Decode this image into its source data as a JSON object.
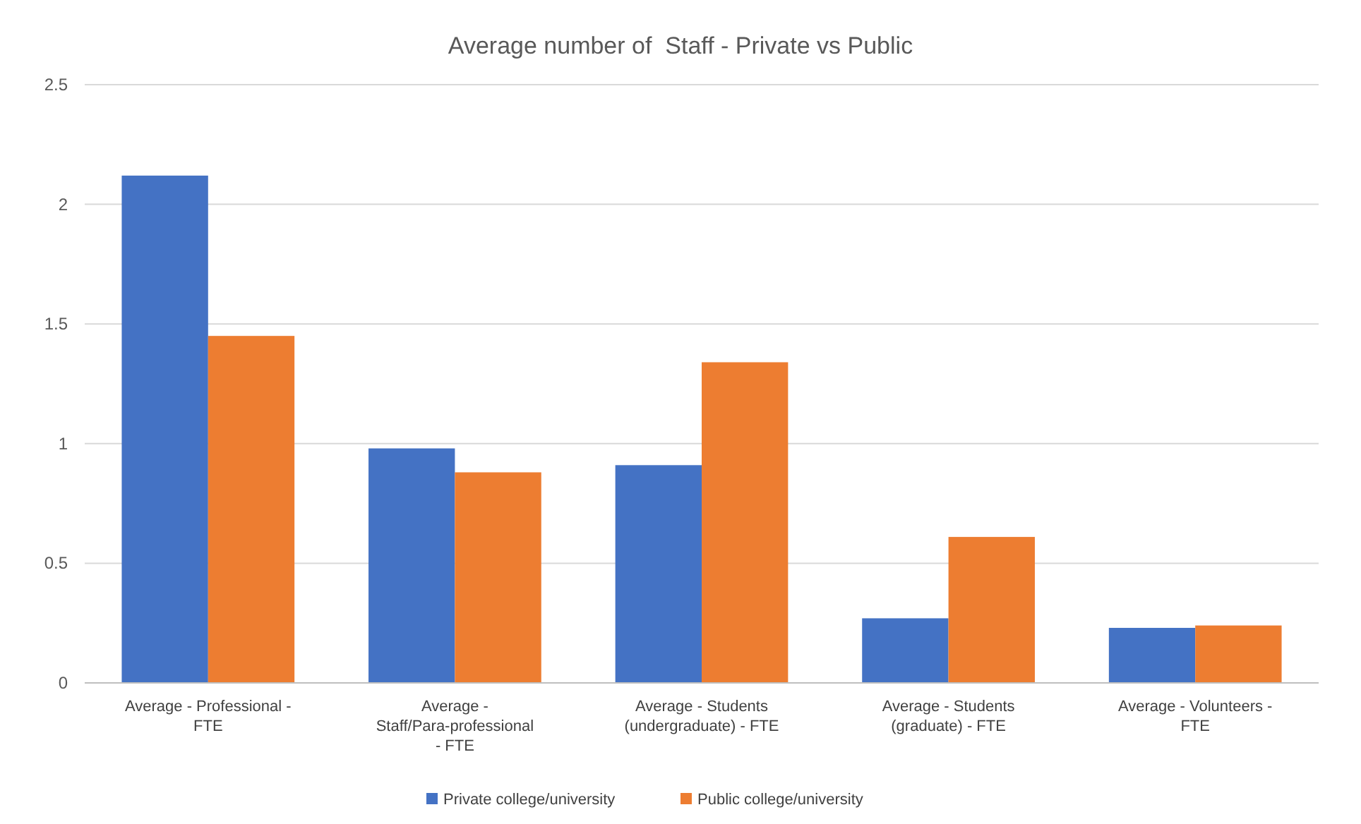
{
  "chart_data": {
    "type": "bar",
    "title": "Average number of  Staff - Private vs Public",
    "categories": [
      "Average - Professional - FTE",
      "Average - Staff/Para-professional - FTE",
      "Average - Students (undergraduate) - FTE",
      "Average - Students (graduate) - FTE",
      "Average - Volunteers - FTE"
    ],
    "series": [
      {
        "name": "Private college/university",
        "color": "#4472c4",
        "values": [
          2.12,
          0.98,
          0.91,
          0.27,
          0.23
        ]
      },
      {
        "name": "Public college/university",
        "color": "#ed7d31",
        "values": [
          1.45,
          0.88,
          1.34,
          0.61,
          0.24
        ]
      }
    ],
    "ylim": [
      0,
      2.5
    ],
    "yticks": [
      0,
      0.5,
      1,
      1.5,
      2,
      2.5
    ],
    "grid": "y",
    "legend": "bottom"
  }
}
